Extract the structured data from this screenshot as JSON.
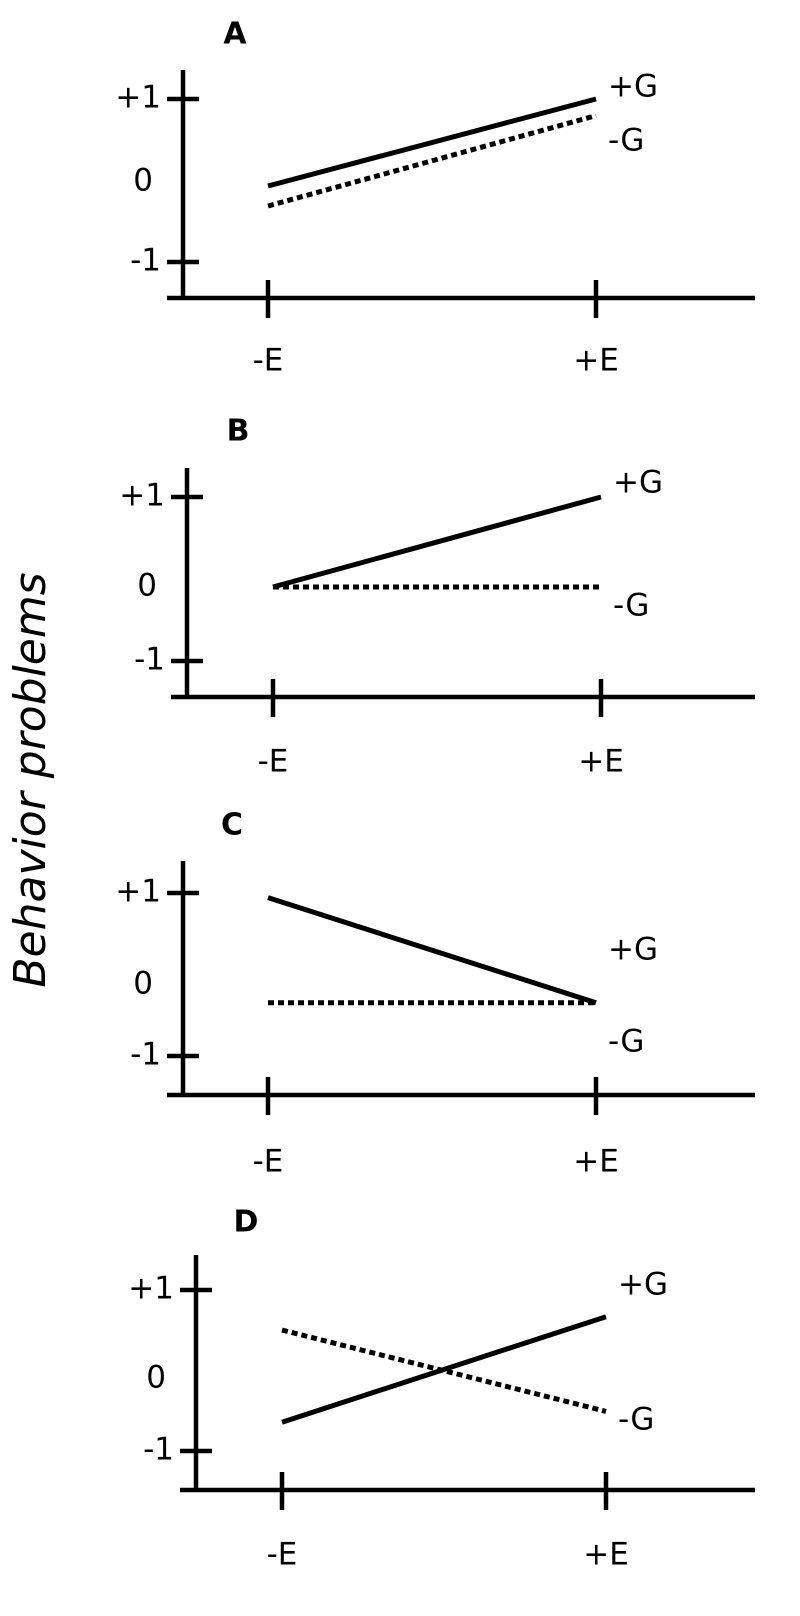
{
  "ylabel": "Behavior problems",
  "chart_data": [
    {
      "type": "line",
      "title": "A",
      "xlabel": "",
      "ylabel": "Behavior problems",
      "categories": [
        "-E",
        "+E"
      ],
      "yticks": [
        {
          "value": 1,
          "label": "+1"
        },
        {
          "value": 0,
          "label": "0"
        },
        {
          "value": -1,
          "label": "-1"
        }
      ],
      "series": [
        {
          "name": "+G",
          "values": [
            -0.05,
            1.0
          ],
          "style": "solid"
        },
        {
          "name": "-G",
          "values": [
            -0.3,
            0.8
          ],
          "style": "dotted"
        }
      ]
    },
    {
      "type": "line",
      "title": "B",
      "xlabel": "",
      "ylabel": "Behavior problems",
      "categories": [
        "-E",
        "+E"
      ],
      "yticks": [
        {
          "value": 1,
          "label": "+1"
        },
        {
          "value": 0,
          "label": "0"
        },
        {
          "value": -1,
          "label": "-1"
        }
      ],
      "series": [
        {
          "name": "+G",
          "values": [
            0.0,
            1.0
          ],
          "style": "solid"
        },
        {
          "name": "-G",
          "values": [
            0.0,
            0.0
          ],
          "style": "dotted"
        }
      ]
    },
    {
      "type": "line",
      "title": "C",
      "xlabel": "",
      "ylabel": "Behavior problems",
      "categories": [
        "-E",
        "+E"
      ],
      "yticks": [
        {
          "value": 1,
          "label": "+1"
        },
        {
          "value": 0,
          "label": "0"
        },
        {
          "value": -1,
          "label": "-1"
        }
      ],
      "series": [
        {
          "name": "+G",
          "values": [
            0.95,
            -0.25
          ],
          "style": "solid"
        },
        {
          "name": "-G",
          "values": [
            -0.25,
            -0.25
          ],
          "style": "dotted"
        }
      ]
    },
    {
      "type": "line",
      "title": "D",
      "xlabel": "",
      "ylabel": "Behavior problems",
      "categories": [
        "-E",
        "+E"
      ],
      "yticks": [
        {
          "value": 1,
          "label": "+1"
        },
        {
          "value": 0,
          "label": "0"
        },
        {
          "value": -1,
          "label": "-1"
        }
      ],
      "series": [
        {
          "name": "+G",
          "values": [
            -0.6,
            0.7
          ],
          "style": "solid"
        },
        {
          "name": "-G",
          "values": [
            0.55,
            -0.45
          ],
          "style": "dotted"
        }
      ]
    }
  ]
}
